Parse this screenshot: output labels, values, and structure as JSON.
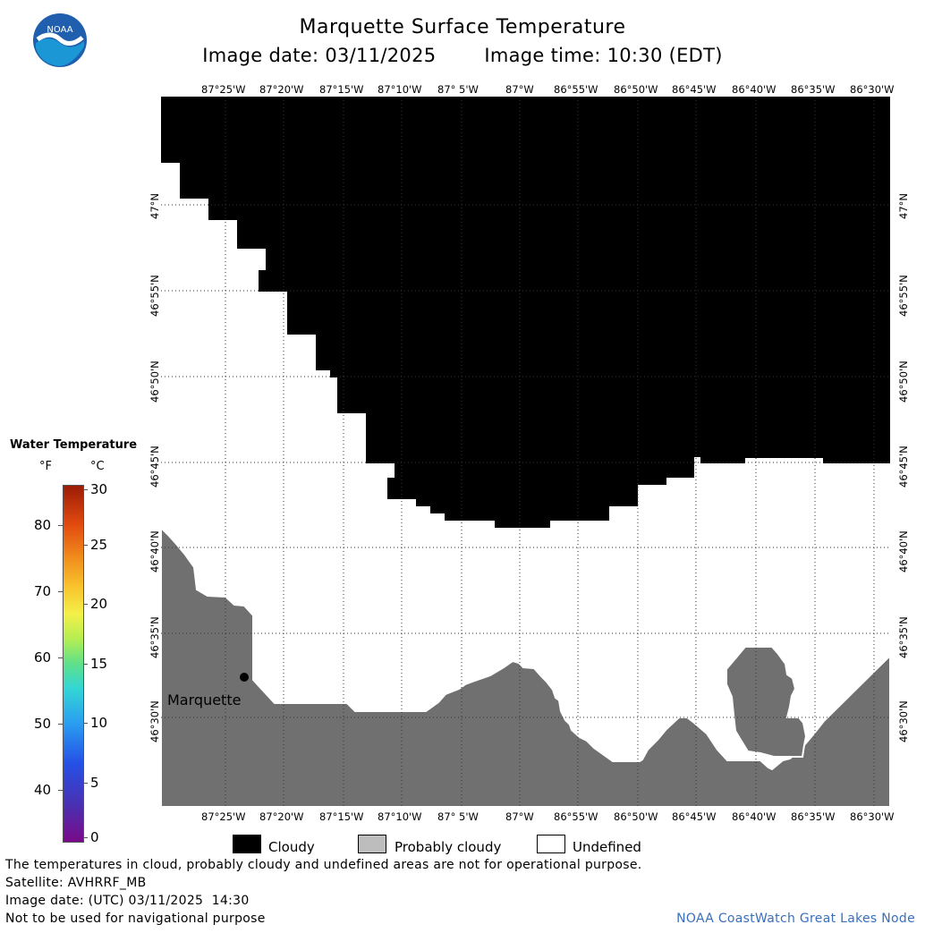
{
  "header": {
    "title": "Marquette Surface Temperature",
    "image_date": "Image date: 03/11/2025",
    "image_time": "Image time: 10:30 (EDT)"
  },
  "logo": {
    "text": "NOAA"
  },
  "map": {
    "longitude_labels": [
      "87°25'W",
      "87°20'W",
      "87°15'W",
      "87°10'W",
      "87° 5'W",
      "87°W",
      "86°55'W",
      "86°50'W",
      "86°45'W",
      "86°40'W",
      "86°35'W",
      "86°30'W"
    ],
    "latitude_labels": [
      "47°N",
      "46°55'N",
      "46°50'N",
      "46°45'N",
      "46°40'N",
      "46°35'N",
      "46°30'N"
    ],
    "city_label": "Marquette",
    "colors": {
      "cloudy": "#000000",
      "probably_cloudy": "#707070",
      "undefined": "#ffffff"
    }
  },
  "water_temperature_legend": {
    "title": "Water Temperature",
    "unit_f": "°F",
    "unit_c": "°C",
    "fahrenheit_ticks": [
      "80",
      "70",
      "60",
      "50",
      "40"
    ],
    "celsius_ticks": [
      "30",
      "25",
      "20",
      "15",
      "10",
      "5",
      "0"
    ]
  },
  "legend": {
    "cloudy": "Cloudy",
    "probably_cloudy": "Probably cloudy",
    "undefined": "Undefined"
  },
  "footer": {
    "disclaimer": "The temperatures in cloud, probably cloudy and undefined areas are not for operational purpose.",
    "satellite": "Satellite: AVHRRF_MB",
    "image_date_utc": "Image date: (UTC) 03/11/2025  14:30",
    "navigation_note": "Not to be used for navigational purpose",
    "credit": "NOAA CoastWatch Great Lakes Node"
  }
}
